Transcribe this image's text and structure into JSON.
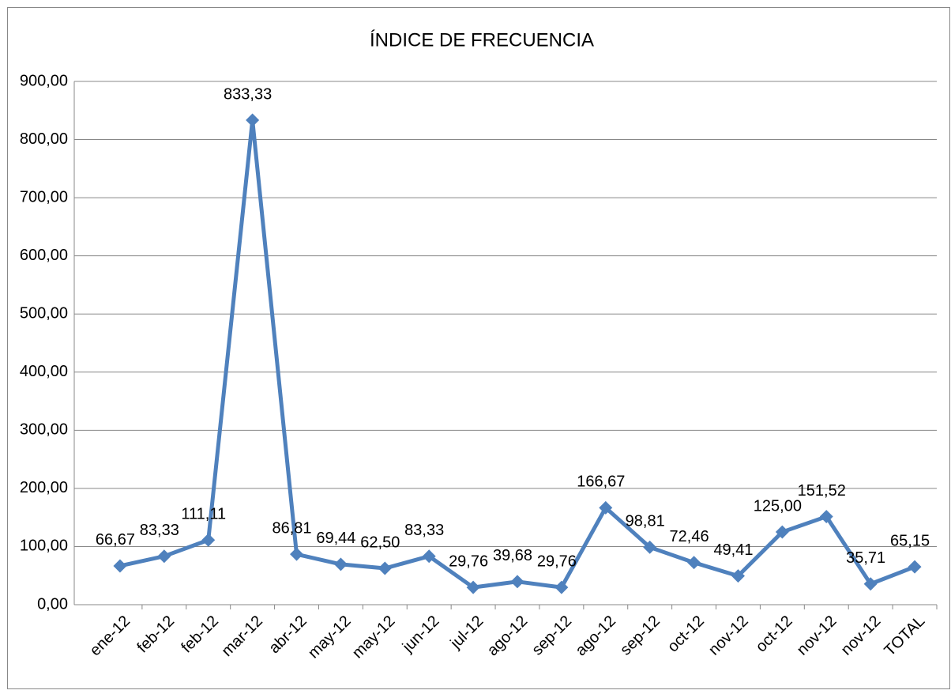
{
  "chart_data": {
    "type": "line",
    "title": "ÍNDICE DE FRECUENCIA",
    "categories": [
      "ene-12",
      "feb-12",
      "feb-12",
      "mar-12",
      "abr-12",
      "may-12",
      "may-12",
      "jun-12",
      "jul-12",
      "ago-12",
      "sep-12",
      "ago-12",
      "sep-12",
      "oct-12",
      "nov-12",
      "oct-12",
      "nov-12",
      "nov-12",
      "TOTAL"
    ],
    "series": [
      {
        "color": "#4f81bd",
        "values": [
          66.67,
          83.33,
          111.11,
          833.33,
          86.81,
          69.44,
          62.5,
          83.33,
          29.76,
          39.68,
          29.76,
          166.67,
          98.81,
          72.46,
          49.41,
          125.0,
          151.52,
          35.71,
          65.15
        ],
        "value_labels": [
          "66,67",
          "83,33",
          "111,11",
          "833,33",
          "86,81",
          "69,44",
          "62,50",
          "83,33",
          "29,76",
          "39,68",
          "29,76",
          "166,67",
          "98,81",
          "72,46",
          "49,41",
          "125,00",
          "151,52",
          "35,71",
          "65,15"
        ]
      }
    ],
    "ylim": [
      0,
      900
    ],
    "yticks": [
      {
        "value": 0,
        "label": "0,00"
      },
      {
        "value": 100,
        "label": "100,00"
      },
      {
        "value": 200,
        "label": "200,00"
      },
      {
        "value": 300,
        "label": "300,00"
      },
      {
        "value": 400,
        "label": "400,00"
      },
      {
        "value": 500,
        "label": "500,00"
      },
      {
        "value": 600,
        "label": "600,00"
      },
      {
        "value": 700,
        "label": "700,00"
      },
      {
        "value": 800,
        "label": "800,00"
      },
      {
        "value": 900,
        "label": "900,00"
      }
    ],
    "grid": true
  }
}
